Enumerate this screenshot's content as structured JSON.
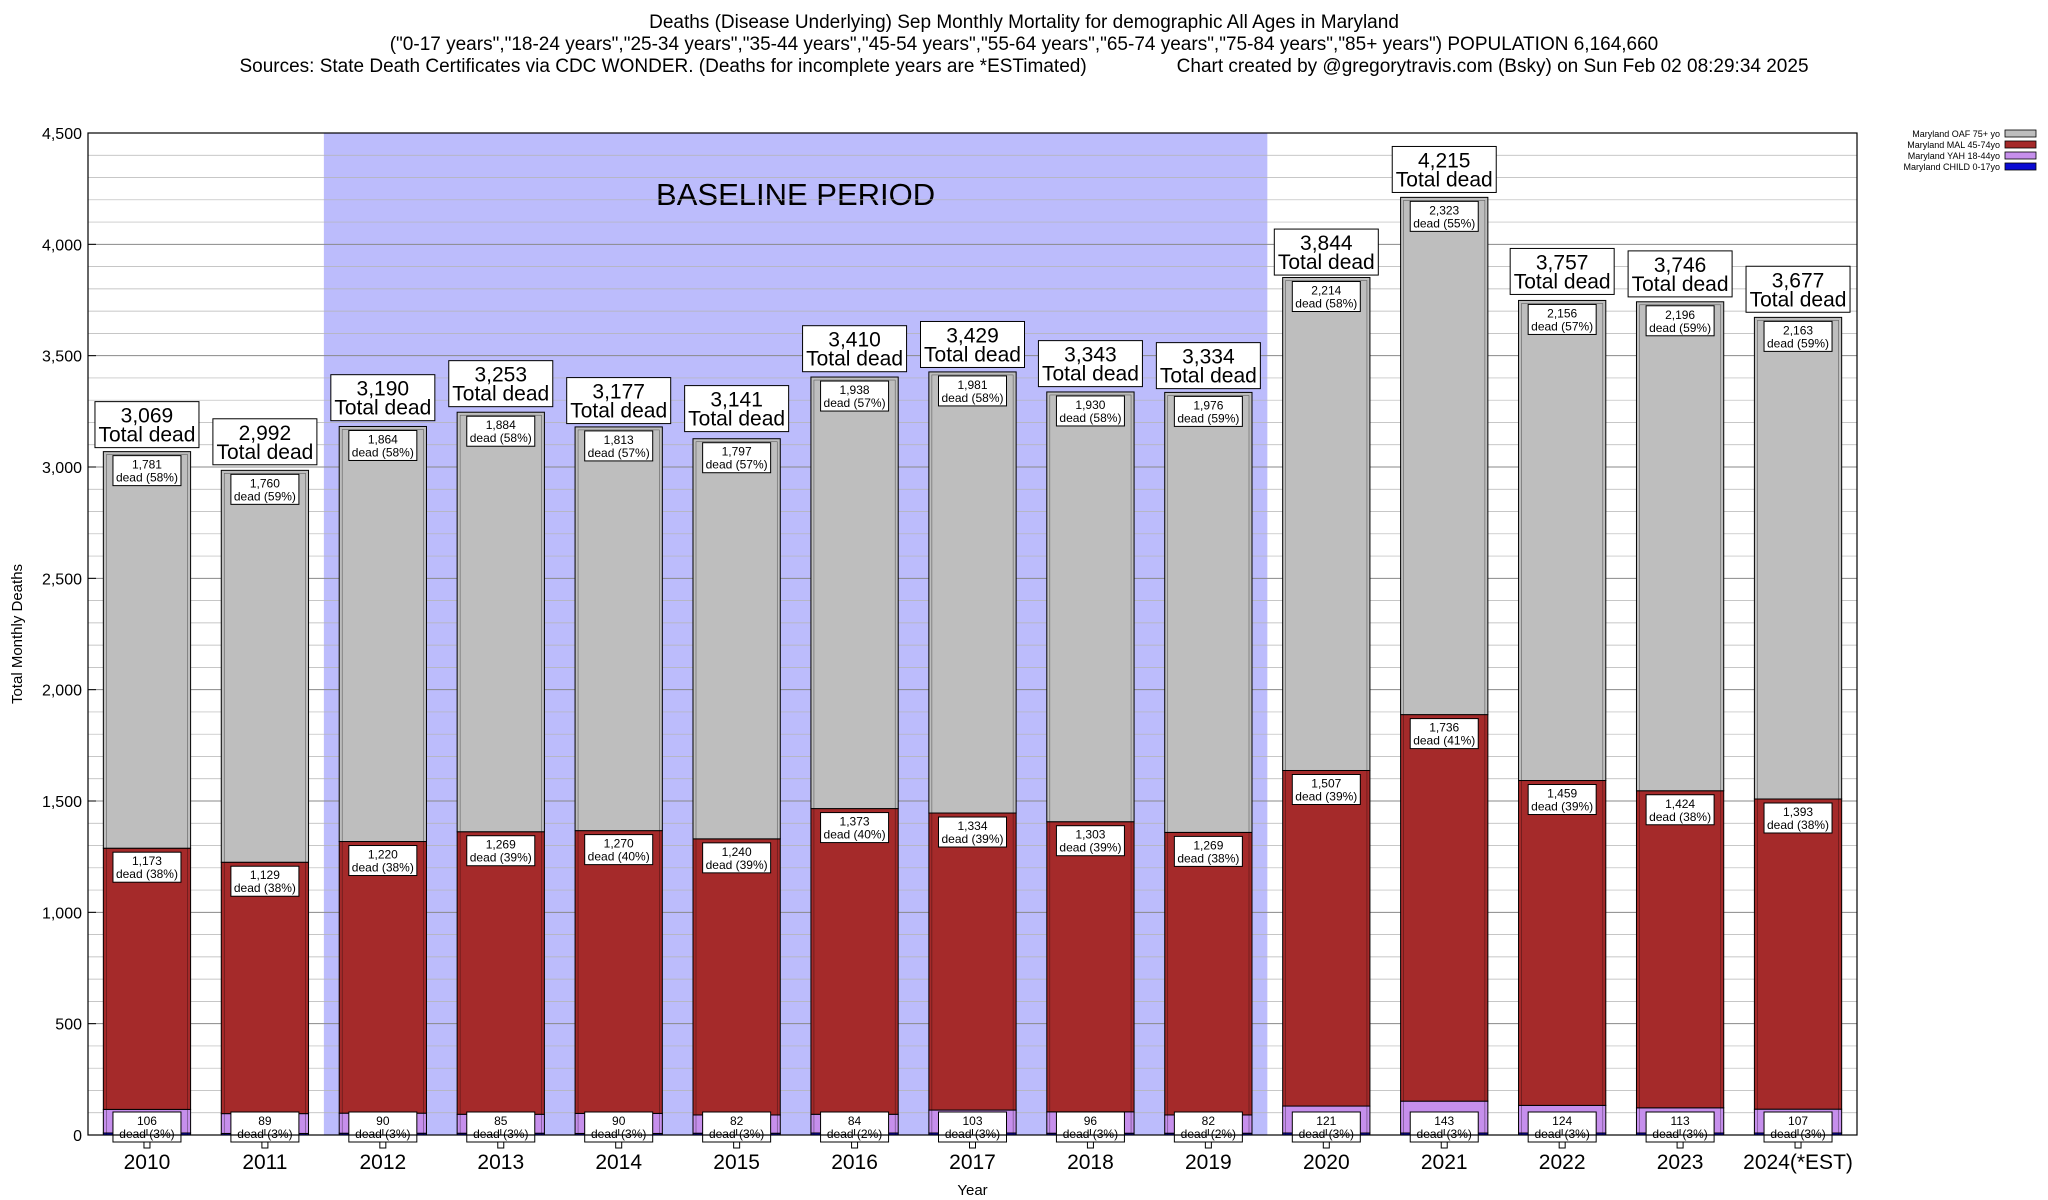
{
  "title": {
    "line1": "Deaths (Disease Underlying) Sep Monthly Mortality for demographic All Ages in Maryland",
    "line2": "(\"0-17 years\",\"18-24 years\",\"25-34 years\",\"35-44 years\",\"45-54 years\",\"55-64 years\",\"65-74 years\",\"75-84 years\",\"85+ years\") POPULATION 6,164,660",
    "line3_left": "Sources: State Death Certificates via CDC WONDER. (Deaths for incomplete years are *ESTimated)",
    "line3_right": "Chart created by @gregorytravis.com (Bsky) on Sun Feb 02 08:29:34 2025"
  },
  "chart_data": {
    "type": "bar",
    "stacked": true,
    "xlabel": "Year",
    "ylabel": "Total Monthly Deaths",
    "ylim": [
      0,
      4500
    ],
    "yticks": [
      0,
      500,
      1000,
      1500,
      2000,
      2500,
      3000,
      3500,
      4000,
      4500
    ],
    "ytick_labels": [
      "0",
      "500",
      "1,000",
      "1,500",
      "2,000",
      "2,500",
      "3,000",
      "3,500",
      "4,000",
      "4,500"
    ],
    "grid": true,
    "legend_position": "top-right",
    "categories": [
      "2010",
      "2011",
      "2012",
      "2013",
      "2014",
      "2015",
      "2016",
      "2017",
      "2018",
      "2019",
      "2020",
      "2021",
      "2022",
      "2023",
      "2024(*EST)"
    ],
    "baseline_label": "BASELINE PERIOD",
    "baseline_range": [
      "2012",
      "2019"
    ],
    "baseline_color": "#bcbcfc",
    "totals": [
      3069,
      2992,
      3190,
      3253,
      3177,
      3141,
      3410,
      3429,
      3343,
      3334,
      3844,
      4215,
      3757,
      3746,
      3677
    ],
    "total_suffix": "Total dead",
    "series": [
      {
        "name": "Maryland CHILD 0-17yo",
        "color": "#0a0ad2",
        "values": [
          9,
          7,
          8,
          8,
          7,
          8,
          9,
          9,
          8,
          8,
          9,
          9,
          9,
          9,
          9
        ],
        "labels": [
          "",
          "",
          "",
          "",
          "",
          "",
          "",
          "",
          "",
          "",
          "",
          "",
          "",
          "",
          ""
        ]
      },
      {
        "name": "Maryland YAH 18-44yo",
        "color": "#c68fec",
        "values": [
          106,
          89,
          90,
          85,
          90,
          82,
          84,
          103,
          96,
          82,
          121,
          143,
          124,
          113,
          107
        ],
        "labels": [
          "106\ndead (3%)",
          "89\ndead (3%)",
          "90\ndead (3%)",
          "85\ndead (3%)",
          "90\ndead (3%)",
          "82\ndead (3%)",
          "84\ndead (2%)",
          "103\ndead (3%)",
          "96\ndead (3%)",
          "82\ndead (2%)",
          "121\ndead (3%)",
          "143\ndead (3%)",
          "124\ndead (3%)",
          "113\ndead (3%)",
          "107\ndead (3%)"
        ]
      },
      {
        "name": "Maryland MAL 45-74yo",
        "color": "#a52a2a",
        "values": [
          1173,
          1129,
          1220,
          1269,
          1270,
          1240,
          1373,
          1334,
          1303,
          1269,
          1507,
          1736,
          1459,
          1424,
          1393
        ],
        "labels": [
          "1,173\ndead (38%)",
          "1,129\ndead (38%)",
          "1,220\ndead (38%)",
          "1,269\ndead (39%)",
          "1,270\ndead (40%)",
          "1,240\ndead (39%)",
          "1,373\ndead (40%)",
          "1,334\ndead (39%)",
          "1,303\ndead (39%)",
          "1,269\ndead (38%)",
          "1,507\ndead (39%)",
          "1,736\ndead (41%)",
          "1,459\ndead (39%)",
          "1,424\ndead (38%)",
          "1,393\ndead (38%)"
        ]
      },
      {
        "name": "Maryland OAF 75+ yo",
        "color": "#bebebe",
        "values": [
          1781,
          1760,
          1864,
          1884,
          1813,
          1797,
          1938,
          1981,
          1930,
          1976,
          2214,
          2323,
          2156,
          2196,
          2163
        ],
        "labels": [
          "1,781\ndead (58%)",
          "1,760\ndead (59%)",
          "1,864\ndead (58%)",
          "1,884\ndead (58%)",
          "1,813\ndead (57%)",
          "1,797\ndead (57%)",
          "1,938\ndead (57%)",
          "1,981\ndead (58%)",
          "1,930\ndead (58%)",
          "1,976\ndead (59%)",
          "2,214\ndead (58%)",
          "2,323\ndead (55%)",
          "2,156\ndead (57%)",
          "2,196\ndead (59%)",
          "2,163\ndead (59%)"
        ]
      }
    ],
    "legend_order": [
      "Maryland OAF 75+ yo",
      "Maryland MAL 45-74yo",
      "Maryland YAH 18-44yo",
      "Maryland CHILD 0-17yo"
    ]
  }
}
